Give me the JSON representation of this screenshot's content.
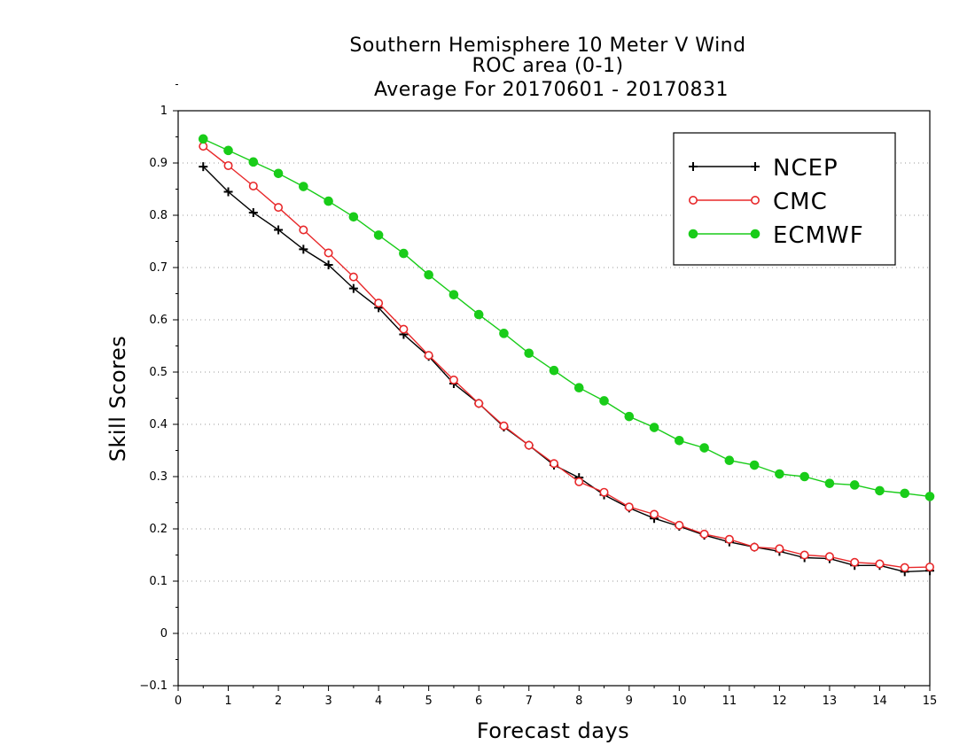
{
  "chart_data": {
    "type": "line",
    "title": [
      "Southern Hemisphere 10 Meter V Wind",
      "ROC area (0-1)",
      "Average For 20170601 - 20170831"
    ],
    "xlabel": "Forecast days",
    "ylabel": "Skill Scores",
    "xlim": [
      0,
      15
    ],
    "ylim": [
      -0.1,
      1
    ],
    "xticks": [
      "0",
      "1",
      "2",
      "3",
      "4",
      "5",
      "6",
      "7",
      "8",
      "9",
      "10",
      "11",
      "12",
      "13",
      "14",
      "15"
    ],
    "yticks": [
      "−0.1",
      "0",
      "0.1",
      "0.2",
      "0.3",
      "0.4",
      "0.5",
      "0.6",
      "0.7",
      "0.8",
      "0.9",
      "1"
    ],
    "grid": "horizontal dotted",
    "legend_position": "top-right",
    "x": [
      0.5,
      1,
      1.5,
      2,
      2.5,
      3,
      3.5,
      4,
      4.5,
      5,
      5.5,
      6,
      6.5,
      7,
      7.5,
      8,
      8.5,
      9,
      9.5,
      10,
      10.5,
      11,
      11.5,
      12,
      12.5,
      13,
      13.5,
      14,
      14.5,
      15
    ],
    "series": [
      {
        "name": "NCEP",
        "color": "#000000",
        "marker": "plus",
        "values": [
          0.893,
          0.845,
          0.805,
          0.772,
          0.735,
          0.705,
          0.66,
          0.623,
          0.572,
          0.53,
          0.478,
          0.44,
          0.395,
          0.36,
          0.322,
          0.298,
          0.265,
          0.24,
          0.22,
          0.205,
          0.188,
          0.175,
          0.165,
          0.157,
          0.145,
          0.143,
          0.13,
          0.13,
          0.118,
          0.12
        ]
      },
      {
        "name": "CMC",
        "color": "#e8282a",
        "marker": "open-circle",
        "values": [
          0.932,
          0.895,
          0.856,
          0.815,
          0.772,
          0.728,
          0.682,
          0.632,
          0.582,
          0.532,
          0.485,
          0.44,
          0.397,
          0.36,
          0.325,
          0.29,
          0.27,
          0.242,
          0.228,
          0.207,
          0.19,
          0.18,
          0.165,
          0.162,
          0.15,
          0.147,
          0.136,
          0.133,
          0.126,
          0.127
        ]
      },
      {
        "name": "ECMWF",
        "color": "#19cc19",
        "marker": "filled-circle",
        "values": [
          0.946,
          0.924,
          0.902,
          0.88,
          0.855,
          0.827,
          0.797,
          0.762,
          0.727,
          0.686,
          0.648,
          0.61,
          0.574,
          0.536,
          0.503,
          0.47,
          0.445,
          0.415,
          0.394,
          0.369,
          0.355,
          0.331,
          0.322,
          0.305,
          0.3,
          0.287,
          0.284,
          0.273,
          0.268,
          0.262
        ]
      }
    ]
  }
}
